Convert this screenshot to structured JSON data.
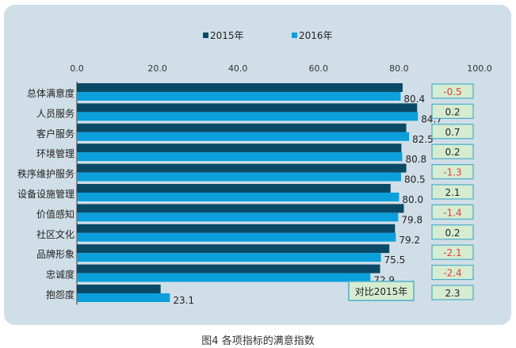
{
  "chart_data": {
    "type": "bar",
    "orientation": "horizontal",
    "title": "",
    "caption": "图4 各项指标的满意指数",
    "categories": [
      "总体满意度",
      "人员服务",
      "客户服务",
      "环境管理",
      "秩序维护服务",
      "设备设施管理",
      "价值感知",
      "社区文化",
      "品牌形象",
      "忠诚度",
      "抱怨度"
    ],
    "series": [
      {
        "name": "2015年",
        "color": "#0b4a66",
        "values": [
          80.9,
          84.5,
          81.8,
          80.6,
          81.8,
          77.9,
          81.2,
          79.0,
          77.6,
          75.3,
          20.8
        ]
      },
      {
        "name": "2016年",
        "color": "#0b9fdc",
        "values": [
          80.4,
          84.7,
          82.5,
          80.8,
          80.5,
          80.0,
          79.8,
          79.2,
          75.5,
          72.9,
          23.1
        ]
      }
    ],
    "value_labels": [
      "80.4",
      "84.7",
      "82.5",
      "80.8",
      "80.5",
      "80.0",
      "79.8",
      "79.2",
      "75.5",
      "72.9",
      "23.1"
    ],
    "diff_title": "对比2015年",
    "diffs": [
      "-0.5",
      "0.2",
      "0.7",
      "0.2",
      "-1.3",
      "2.1",
      "-1.4",
      "0.2",
      "-2.1",
      "-2.4",
      "2.3"
    ],
    "xlim": [
      0,
      100
    ],
    "xticks": [
      "0.0",
      "20.0",
      "40.0",
      "60.0",
      "80.0",
      "100.0"
    ],
    "legend_position": "top-center",
    "grid": false
  }
}
